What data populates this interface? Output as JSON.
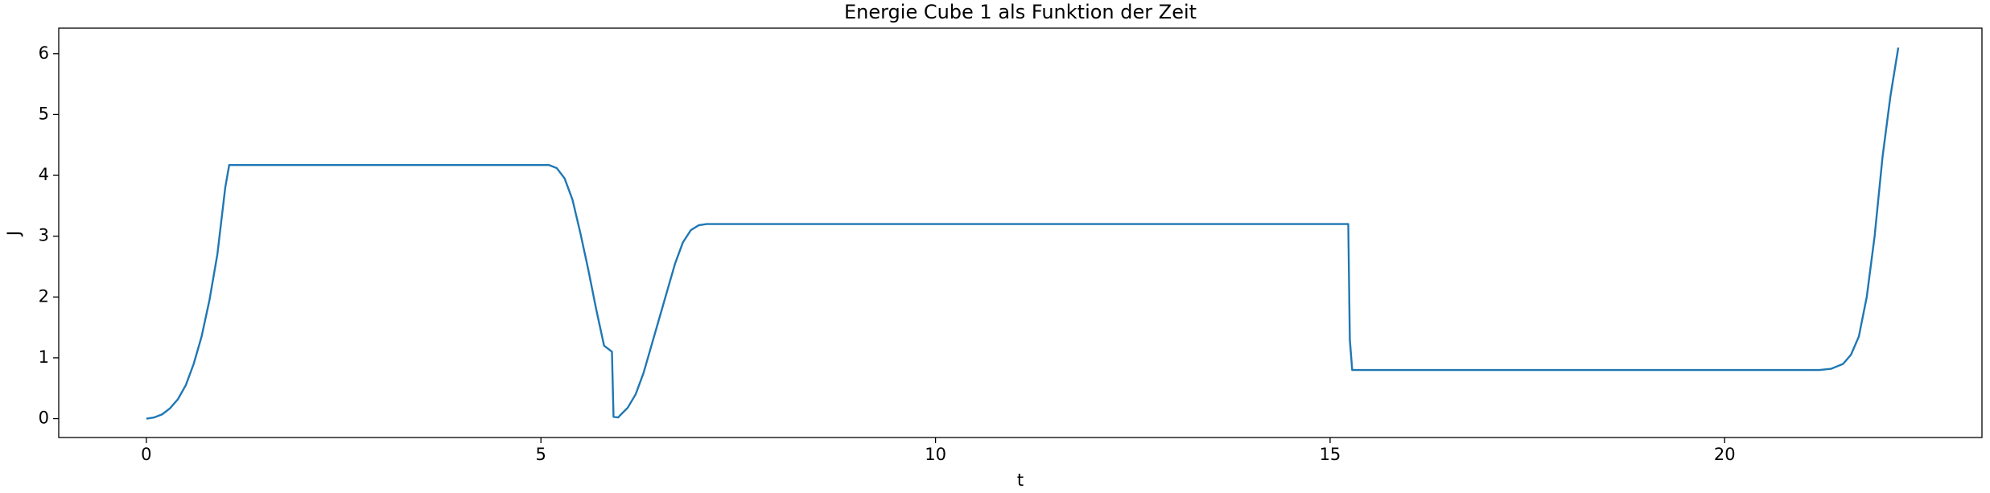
{
  "chart_data": {
    "type": "line",
    "title": "Energie Cube 1 als Funktion der Zeit",
    "x_label": "t",
    "y_label": "J",
    "x": [
      0,
      0.1,
      0.2,
      0.3,
      0.4,
      0.5,
      0.6,
      0.7,
      0.8,
      0.9,
      1.0,
      1.05,
      5.1,
      5.2,
      5.3,
      5.4,
      5.5,
      5.6,
      5.7,
      5.8,
      5.9,
      5.92,
      5.98,
      6.0,
      6.1,
      6.2,
      6.3,
      6.4,
      6.5,
      6.6,
      6.7,
      6.8,
      6.9,
      7.0,
      7.1,
      15.23,
      15.25,
      15.28,
      21.2,
      21.35,
      21.5,
      21.6,
      21.7,
      21.8,
      21.9,
      22.0,
      22.1,
      22.2
    ],
    "series": [
      {
        "name": "J",
        "color": "#1f77b4",
        "values": [
          0,
          0.02,
          0.07,
          0.17,
          0.32,
          0.55,
          0.9,
          1.35,
          1.95,
          2.7,
          3.8,
          4.17,
          4.17,
          4.12,
          3.95,
          3.6,
          3.05,
          2.45,
          1.8,
          1.2,
          1.1,
          0.03,
          0.02,
          0.05,
          0.18,
          0.4,
          0.75,
          1.2,
          1.65,
          2.1,
          2.55,
          2.9,
          3.1,
          3.18,
          3.2,
          3.2,
          1.3,
          0.8,
          0.8,
          0.82,
          0.9,
          1.05,
          1.35,
          2.0,
          3.0,
          4.3,
          5.3,
          6.1
        ]
      }
    ],
    "xlim": [
      -1.11,
      23.26
    ],
    "ylim": [
      -0.31,
      6.42
    ],
    "xticks": [
      0,
      5,
      10,
      15,
      20
    ],
    "yticks": [
      0,
      1,
      2,
      3,
      4,
      5,
      6
    ],
    "grid": false
  }
}
